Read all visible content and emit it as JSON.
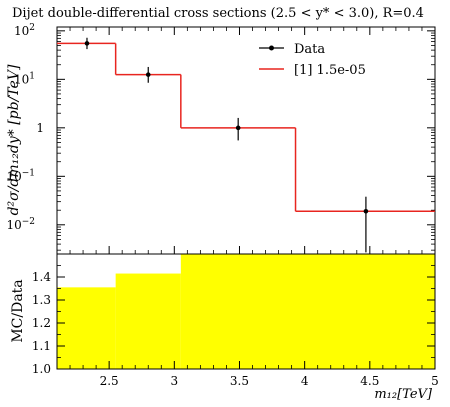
{
  "chart_data": [
    {
      "type": "line",
      "title": "Dijet double-differential cross sections (2.5 < y* < 3.0), R=0.4",
      "ylabel": "d²σ/dm₁₂dy* [pb/TeV]",
      "xlabel": "m₁₂[TeV]",
      "xlim": [
        2.1,
        5.0
      ],
      "ylim": [
        0.0025,
        120
      ],
      "yscale": "log",
      "legend_position": "top-right",
      "y_ticks": [
        {
          "value": 100,
          "base": "10",
          "exp": "2"
        },
        {
          "value": 10,
          "base": "10",
          "exp": "1"
        },
        {
          "value": 1,
          "base": "1",
          "exp": ""
        },
        {
          "value": 0.1,
          "base": "10",
          "exp": "−1"
        },
        {
          "value": 0.01,
          "base": "10",
          "exp": "−2"
        }
      ],
      "series": [
        {
          "name": "Data",
          "style": "points-with-error-bars",
          "color": "#000000",
          "points": [
            {
              "x": 2.33,
              "y": 55,
              "ylo": 42,
              "yhi": 72
            },
            {
              "x": 2.8,
              "y": 12.5,
              "ylo": 8.5,
              "yhi": 18
            },
            {
              "x": 3.49,
              "y": 1.0,
              "ylo": 0.55,
              "yhi": 1.6
            },
            {
              "x": 4.47,
              "y": 0.019,
              "ylo": 0.0027,
              "yhi": 0.038
            }
          ]
        },
        {
          "name": "[1] 1.5e-05",
          "style": "step",
          "color": "#e8251f",
          "bins": [
            {
              "x0": 2.1,
              "x1": 2.55,
              "y": 55
            },
            {
              "x0": 2.55,
              "x1": 3.05,
              "y": 12.5
            },
            {
              "x0": 3.05,
              "x1": 3.93,
              "y": 1.0
            },
            {
              "x0": 3.93,
              "x1": 5.0,
              "y": 0.019
            }
          ]
        }
      ]
    },
    {
      "type": "area",
      "ylabel": "MC/Data",
      "xlabel": "m₁₂[TeV]",
      "xlim": [
        2.1,
        5.0
      ],
      "ylim": [
        1.0,
        1.5
      ],
      "fill_color": "#ffff00",
      "y_ticks": [
        "1.0",
        "1.1",
        "1.2",
        "1.3",
        "1.4"
      ],
      "x_ticks": [
        "2.5",
        "3",
        "3.5",
        "4",
        "4.5",
        "5"
      ],
      "bins": [
        {
          "x0": 2.1,
          "x1": 2.55,
          "y": 1.355
        },
        {
          "x0": 2.55,
          "x1": 3.05,
          "y": 1.415
        },
        {
          "x0": 3.05,
          "x1": 5.0,
          "y": 1.5
        }
      ]
    }
  ]
}
